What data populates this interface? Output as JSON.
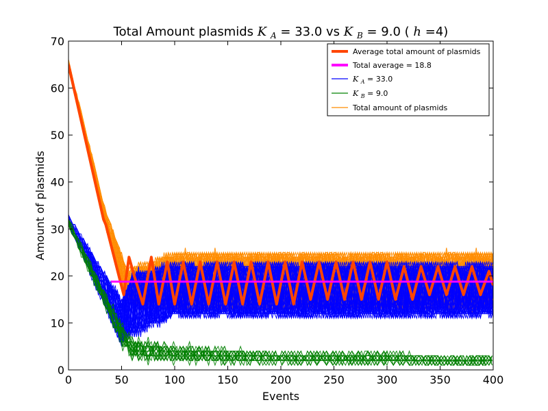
{
  "chart_data": {
    "type": "line",
    "title": "Total Amount plasmids",
    "title_parts": {
      "ka_symbol": "K",
      "ka_sub": "A",
      "ka_value": " = 33.0 vs ",
      "kb_symbol": "K",
      "kb_sub": "B",
      "kb_value": " = 9.0 (",
      "h_symbol": "h",
      "h_value": "=4)"
    },
    "xlabel": "Events",
    "ylabel": "Amount of plasmids",
    "xlim": [
      0,
      400
    ],
    "ylim": [
      0,
      70
    ],
    "x_ticks": [
      "0",
      "50",
      "100",
      "150",
      "200",
      "250",
      "300",
      "350",
      "400"
    ],
    "y_ticks": [
      "0",
      "10",
      "20",
      "30",
      "40",
      "50",
      "60",
      "70"
    ],
    "grid": false,
    "legend_position": "top-right",
    "legend": [
      {
        "label": "Average total amount of plasmids",
        "color": "#ff4500",
        "weight": "thick"
      },
      {
        "label": "Total average = 18.8",
        "color": "#ff00ff",
        "weight": "thick"
      },
      {
        "label": "K_A = 33.0",
        "symbol": "K",
        "sub": "A",
        "value": " = 33.0",
        "color": "#0000ff",
        "weight": "thin"
      },
      {
        "label": "K_B = 9.0",
        "symbol": "K",
        "sub": "B",
        "value": " = 9.0",
        "color": "#008000",
        "weight": "thin"
      },
      {
        "label": "Total amount of plasmids",
        "color": "#ff8c00",
        "weight": "thin"
      }
    ],
    "series": [
      {
        "name": "Average total amount of plasmids",
        "color": "#ff4500",
        "x": [
          0,
          33,
          35,
          52,
          57,
          62,
          70,
          78,
          85,
          93,
          100,
          108,
          116,
          124,
          132,
          140,
          148,
          156,
          164,
          172,
          180,
          188,
          196,
          204,
          212,
          220,
          228,
          236,
          244,
          252,
          260,
          268,
          276,
          284,
          292,
          300,
          308,
          316,
          324,
          332,
          340,
          348,
          356,
          364,
          372,
          380,
          388,
          396,
          400
        ],
        "y": [
          65,
          32,
          31,
          16,
          24,
          20,
          14,
          24,
          14,
          23,
          14,
          23,
          14,
          23,
          14,
          23,
          14,
          23,
          14,
          23,
          14,
          23,
          14,
          23,
          14,
          23,
          15,
          23,
          15,
          23,
          15,
          23,
          15,
          23,
          15,
          23,
          15,
          22,
          15,
          22,
          16,
          22,
          16,
          22,
          16,
          22,
          16,
          21,
          18
        ]
      },
      {
        "name": "Total average = 18.8",
        "color": "#ff00ff",
        "x": [
          40,
          400
        ],
        "y": [
          18.8,
          18.8
        ]
      },
      {
        "name": "K_A = 33.0",
        "color": "#0000ff",
        "x": [
          0,
          50,
          60,
          100,
          150,
          200,
          250,
          300,
          350,
          400
        ],
        "y": [
          32,
          8,
          12,
          18,
          18,
          18,
          17,
          17,
          17,
          17
        ],
        "band_low": [
          31,
          4,
          6,
          10,
          10,
          10,
          10,
          10,
          10,
          10
        ],
        "band_high": [
          33,
          16,
          22,
          24,
          24,
          24,
          24,
          24,
          24,
          24
        ]
      },
      {
        "name": "K_B = 9.0",
        "color": "#008000",
        "x": [
          0,
          50,
          60,
          100,
          150,
          200,
          250,
          300,
          350,
          400
        ],
        "y": [
          32,
          6,
          4,
          2,
          2,
          2,
          2,
          2,
          2,
          2
        ],
        "band_low": [
          30,
          3,
          0,
          0,
          0,
          0,
          0,
          0,
          0,
          0
        ],
        "band_high": [
          33,
          12,
          9,
          7,
          6,
          5,
          5,
          5,
          4,
          4
        ]
      },
      {
        "name": "Total amount of plasmids",
        "color": "#ff8c00",
        "x": [
          0,
          35,
          55,
          100,
          150,
          200,
          250,
          300,
          350,
          400
        ],
        "y": [
          65,
          32,
          18,
          19,
          19,
          19,
          19,
          19,
          19,
          19
        ],
        "band_low": [
          64,
          30,
          14,
          12,
          12,
          12,
          12,
          12,
          12,
          12
        ],
        "band_high": [
          66,
          34,
          22,
          26,
          26,
          26,
          26,
          26,
          26,
          26
        ]
      }
    ]
  }
}
